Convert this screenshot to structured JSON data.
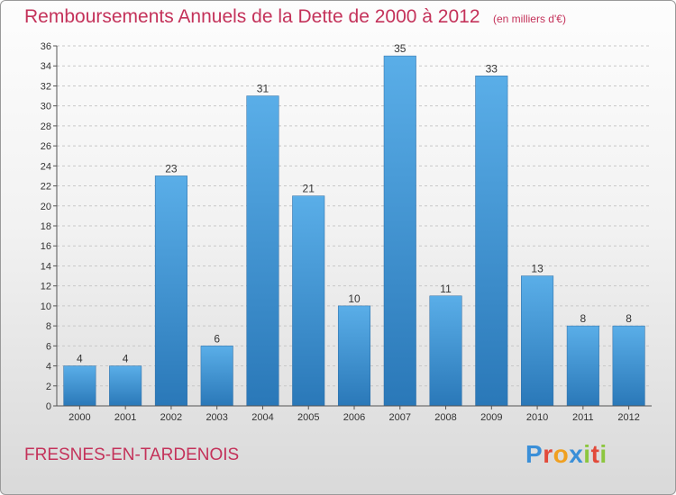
{
  "chart_data": {
    "type": "bar",
    "title": "Remboursements Annuels de la Dette de 2000 à 2012",
    "subtitle": "(en milliers d'€)",
    "categories": [
      "2000",
      "2001",
      "2002",
      "2003",
      "2004",
      "2005",
      "2006",
      "2007",
      "2008",
      "2009",
      "2010",
      "2011",
      "2012"
    ],
    "values": [
      4,
      4,
      23,
      6,
      31,
      21,
      10,
      35,
      11,
      33,
      13,
      8,
      8
    ],
    "ylim": [
      0,
      36
    ],
    "yticks": [
      0,
      2,
      4,
      6,
      8,
      10,
      12,
      14,
      16,
      18,
      20,
      22,
      24,
      26,
      28,
      30,
      32,
      34,
      36
    ],
    "grid": true,
    "xlabel": "",
    "ylabel": "",
    "bar_color_top": "#5aaee8",
    "bar_color_bottom": "#2a78b8"
  },
  "footer": {
    "commune": "FRESNES-EN-TARDENOIS"
  },
  "logo": {
    "letters": [
      {
        "char": "P",
        "color": "#3a8fd8"
      },
      {
        "char": "r",
        "color": "#e24a3a"
      },
      {
        "char": "o",
        "color": "#f0a020"
      },
      {
        "char": "x",
        "color": "#3a8fd8"
      },
      {
        "char": "i",
        "color": "#8cc63f"
      },
      {
        "char": "t",
        "color": "#e24a3a"
      },
      {
        "char": "i",
        "color": "#8cc63f"
      }
    ]
  }
}
